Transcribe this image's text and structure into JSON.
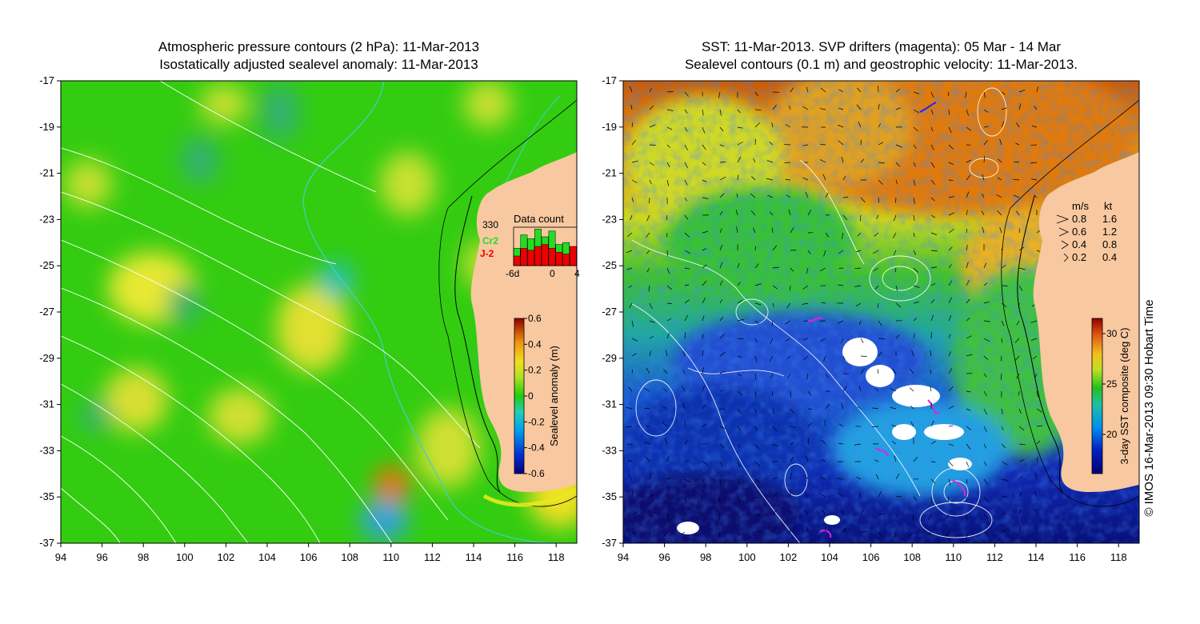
{
  "left_panel": {
    "title_line1": "Atmospheric pressure contours (2 hPa): 11-Mar-2013",
    "title_line2": "Isostatically adjusted sealevel anomaly: 11-Mar-2013",
    "colorbar_label": "Sealevel anomaly (m)",
    "colorbar_ticks": [
      "0.6",
      "0.4",
      "0.2",
      "0",
      "-0.2",
      "-0.4",
      "-0.6"
    ],
    "data_count": {
      "title": "Data count",
      "max_label": "330",
      "series": [
        {
          "name": "Cr2",
          "color": "#22dd22"
        },
        {
          "name": "J-2",
          "color": "#ee0000"
        }
      ],
      "x_ticks": [
        "-6d",
        "0",
        "4"
      ],
      "green_values": [
        0.45,
        0.8,
        0.7,
        0.95,
        0.75,
        0.9,
        0.55,
        0.6,
        0.3
      ],
      "red_values": [
        0.25,
        0.45,
        0.4,
        0.5,
        0.55,
        0.45,
        0.35,
        0.3,
        0.5
      ]
    }
  },
  "right_panel": {
    "title_line1": "SST: 11-Mar-2013. SVP drifters (magenta): 05 Mar - 14 Mar",
    "title_line2": "Sealevel contours (0.1 m) and geostrophic velocity: 11-Mar-2013.",
    "colorbar_label": "3-day SST composite (deg C)",
    "colorbar_ticks": [
      "30",
      "25",
      "20"
    ],
    "velocity_legend": {
      "header_ms": "m/s",
      "header_kt": "kt",
      "rows": [
        {
          "ms": "0.8",
          "kt": "1.6"
        },
        {
          "ms": "0.6",
          "kt": "1.2"
        },
        {
          "ms": "0.4",
          "kt": "0.8"
        },
        {
          "ms": "0.2",
          "kt": "0.4"
        }
      ]
    }
  },
  "axes": {
    "y_ticks": [
      "-17",
      "-19",
      "-21",
      "-23",
      "-25",
      "-27",
      "-29",
      "-31",
      "-33",
      "-35",
      "-37"
    ],
    "x_ticks": [
      "94",
      "96",
      "98",
      "100",
      "102",
      "104",
      "106",
      "108",
      "110",
      "112",
      "114",
      "116",
      "118"
    ]
  },
  "copyright": "© IMOS 16-Mar-2013 09:30 Hobart Time",
  "colors": {
    "land": "#f8c8a0",
    "anomaly_base": "#22cc11",
    "sst_warm": "#e07010",
    "sst_cool": "#1030c0",
    "contour": "#ffffff",
    "isobath": "#40d0d0"
  }
}
